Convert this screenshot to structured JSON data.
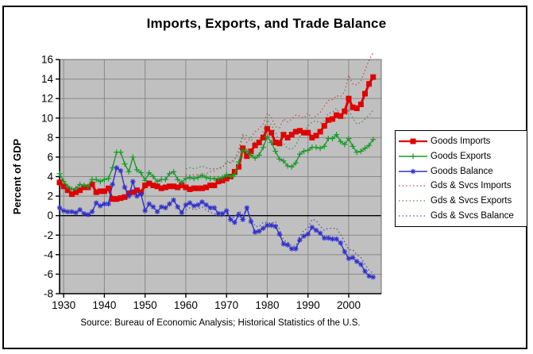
{
  "page": {
    "source_note": "Source: Bureau of Economic Analysis; Historical Statistics of the U.S."
  },
  "chart_data": {
    "type": "line",
    "title": "Imports, Exports, and Trade Balance",
    "xlabel": "",
    "ylabel": "Percent of GDP",
    "ylim": [
      -8,
      16
    ],
    "xlim": [
      1929,
      2008
    ],
    "yticks": [
      -8,
      -6,
      -4,
      -2,
      0,
      2,
      4,
      6,
      8,
      10,
      12,
      14,
      16
    ],
    "xticks": [
      1930,
      1940,
      1950,
      1960,
      1970,
      1980,
      1990,
      2000
    ],
    "grid": true,
    "legend_position": "right",
    "plot_bg_color": "#c0c0c0",
    "grid_color": "#898989",
    "axis_color": "#000000",
    "x": [
      1929,
      1930,
      1931,
      1932,
      1933,
      1934,
      1935,
      1936,
      1937,
      1938,
      1939,
      1940,
      1941,
      1942,
      1943,
      1944,
      1945,
      1946,
      1947,
      1948,
      1949,
      1950,
      1951,
      1952,
      1953,
      1954,
      1955,
      1956,
      1957,
      1958,
      1959,
      1960,
      1961,
      1962,
      1963,
      1964,
      1965,
      1966,
      1967,
      1968,
      1969,
      1970,
      1971,
      1972,
      1973,
      1974,
      1975,
      1976,
      1977,
      1978,
      1979,
      1980,
      1981,
      1982,
      1983,
      1984,
      1985,
      1986,
      1987,
      1988,
      1989,
      1990,
      1991,
      1992,
      1993,
      1994,
      1995,
      1996,
      1997,
      1998,
      1999,
      2000,
      2001,
      2002,
      2003,
      2004,
      2005,
      2006
    ],
    "series": [
      {
        "name": "Goods Imports",
        "color": "#e00000",
        "style": "solid",
        "marker": "square",
        "line_width": 3,
        "values": [
          3.4,
          3.0,
          2.6,
          2.2,
          2.4,
          2.6,
          2.9,
          2.9,
          3.2,
          2.4,
          2.5,
          2.5,
          2.8,
          1.7,
          1.7,
          1.8,
          1.9,
          2.3,
          2.4,
          2.6,
          2.4,
          3.1,
          3.3,
          3.1,
          3.0,
          2.8,
          2.9,
          3.0,
          3.0,
          2.9,
          3.1,
          2.9,
          2.7,
          2.8,
          2.8,
          2.8,
          2.9,
          3.1,
          3.1,
          3.5,
          3.6,
          3.8,
          4.0,
          4.5,
          5.0,
          6.9,
          6.1,
          6.6,
          7.2,
          7.5,
          8.0,
          8.9,
          8.5,
          7.5,
          7.4,
          8.3,
          8.0,
          8.3,
          8.6,
          8.7,
          8.5,
          8.5,
          8.0,
          8.2,
          8.6,
          9.2,
          9.8,
          9.9,
          10.3,
          10.2,
          10.7,
          12.0,
          11.1,
          11.0,
          11.4,
          12.5,
          13.5,
          14.2
        ]
      },
      {
        "name": "Goods Exports",
        "color": "#189a28",
        "style": "solid",
        "marker": "plus",
        "line_width": 1.4,
        "values": [
          4.3,
          3.5,
          3.0,
          2.7,
          2.8,
          3.2,
          3.1,
          3.0,
          3.7,
          3.7,
          3.5,
          3.7,
          3.8,
          4.9,
          6.5,
          6.5,
          5.3,
          4.5,
          6.0,
          4.7,
          4.4,
          3.6,
          4.4,
          4.0,
          3.5,
          3.7,
          3.7,
          4.3,
          4.5,
          3.7,
          3.4,
          3.8,
          3.9,
          3.8,
          3.9,
          4.1,
          3.9,
          3.8,
          3.8,
          3.8,
          3.9,
          4.2,
          4.0,
          4.2,
          5.5,
          6.7,
          6.6,
          6.2,
          5.9,
          6.2,
          7.0,
          8.1,
          7.5,
          6.6,
          5.8,
          5.6,
          5.1,
          5.0,
          5.4,
          6.3,
          6.6,
          6.7,
          7.0,
          7.0,
          6.9,
          7.1,
          7.9,
          7.9,
          8.3,
          7.6,
          7.3,
          7.9,
          7.1,
          6.5,
          6.6,
          6.9,
          7.2,
          7.8
        ]
      },
      {
        "name": "Goods Balance",
        "color": "#3030cc",
        "style": "solid",
        "marker": "star",
        "line_width": 1.4,
        "values": [
          0.8,
          0.5,
          0.4,
          0.4,
          0.3,
          0.6,
          0.2,
          0.1,
          0.4,
          1.3,
          1.0,
          1.2,
          1.2,
          3.2,
          4.9,
          4.6,
          2.9,
          2.0,
          3.5,
          2.0,
          2.2,
          0.5,
          1.2,
          0.9,
          0.4,
          0.9,
          0.8,
          1.2,
          1.6,
          0.9,
          0.3,
          1.1,
          1.3,
          1.0,
          1.1,
          1.4,
          1.1,
          0.8,
          0.8,
          0.2,
          0.2,
          0.5,
          -0.4,
          -0.7,
          0.1,
          -0.4,
          0.8,
          -0.6,
          -1.7,
          -1.6,
          -1.3,
          -1.0,
          -1.0,
          -1.1,
          -1.9,
          -2.9,
          -3.0,
          -3.4,
          -3.4,
          -2.5,
          -2.1,
          -1.9,
          -1.2,
          -1.5,
          -1.8,
          -2.3,
          -2.3,
          -2.4,
          -2.4,
          -2.8,
          -3.7,
          -4.4,
          -4.3,
          -4.7,
          -5.0,
          -5.7,
          -6.2,
          -6.3
        ]
      },
      {
        "name": "Gds & Svcs Imports",
        "color": "#c05050",
        "style": "dotted",
        "marker": "none",
        "line_width": 1.3,
        "values": [
          null,
          null,
          null,
          null,
          null,
          null,
          null,
          null,
          null,
          null,
          null,
          null,
          null,
          null,
          null,
          null,
          null,
          null,
          null,
          null,
          null,
          null,
          null,
          null,
          null,
          null,
          null,
          null,
          null,
          null,
          null,
          4.2,
          4.1,
          4.2,
          4.2,
          4.2,
          4.3,
          4.5,
          4.6,
          4.9,
          5.0,
          5.4,
          5.5,
          5.8,
          6.4,
          8.2,
          7.5,
          8.0,
          8.6,
          8.9,
          9.4,
          10.5,
          10.1,
          9.1,
          9.0,
          9.9,
          9.6,
          9.9,
          10.3,
          10.2,
          10.0,
          10.5,
          10.0,
          10.2,
          10.6,
          11.2,
          11.8,
          11.9,
          12.3,
          12.2,
          12.7,
          14.4,
          13.5,
          13.4,
          13.8,
          14.9,
          15.9,
          16.7
        ]
      },
      {
        "name": "Gds & Svcs Exports",
        "color": "#558855",
        "style": "dotted",
        "marker": "none",
        "line_width": 1.3,
        "values": [
          null,
          null,
          null,
          null,
          null,
          null,
          null,
          null,
          null,
          null,
          null,
          null,
          null,
          null,
          null,
          null,
          null,
          null,
          null,
          null,
          null,
          null,
          null,
          null,
          null,
          null,
          null,
          null,
          null,
          null,
          null,
          4.8,
          4.9,
          4.8,
          4.9,
          5.1,
          4.9,
          4.8,
          4.8,
          4.8,
          4.9,
          5.6,
          5.4,
          5.6,
          6.9,
          8.3,
          8.2,
          7.8,
          7.5,
          7.8,
          8.7,
          9.8,
          9.3,
          8.5,
          7.6,
          7.4,
          6.9,
          6.8,
          7.2,
          8.1,
          8.5,
          9.2,
          9.6,
          9.7,
          9.5,
          9.7,
          10.5,
          10.6,
          11.0,
          10.3,
          10.0,
          10.9,
          10.0,
          9.4,
          9.5,
          9.9,
          10.3,
          10.8
        ]
      },
      {
        "name": "Gds & Svcs Balance",
        "color": "#5050a8",
        "style": "dotted",
        "marker": "none",
        "line_width": 1.3,
        "values": [
          null,
          null,
          null,
          null,
          null,
          null,
          null,
          null,
          null,
          null,
          null,
          null,
          null,
          null,
          null,
          null,
          null,
          null,
          null,
          null,
          null,
          null,
          null,
          null,
          null,
          null,
          null,
          null,
          null,
          null,
          null,
          0.6,
          0.8,
          0.6,
          0.7,
          0.9,
          0.6,
          0.3,
          0.2,
          -0.1,
          -0.1,
          0.2,
          -0.1,
          -0.2,
          0.5,
          0.1,
          0.7,
          -0.2,
          -1.1,
          -1.1,
          -0.7,
          -0.7,
          -0.8,
          -0.6,
          -1.4,
          -2.5,
          -2.7,
          -3.1,
          -3.1,
          -2.1,
          -1.5,
          -1.3,
          -0.4,
          -0.5,
          -1.1,
          -1.5,
          -1.3,
          -1.3,
          -1.3,
          -1.9,
          -2.7,
          -3.5,
          -3.5,
          -4.0,
          -4.3,
          -5.0,
          -5.6,
          -5.9
        ]
      }
    ]
  }
}
